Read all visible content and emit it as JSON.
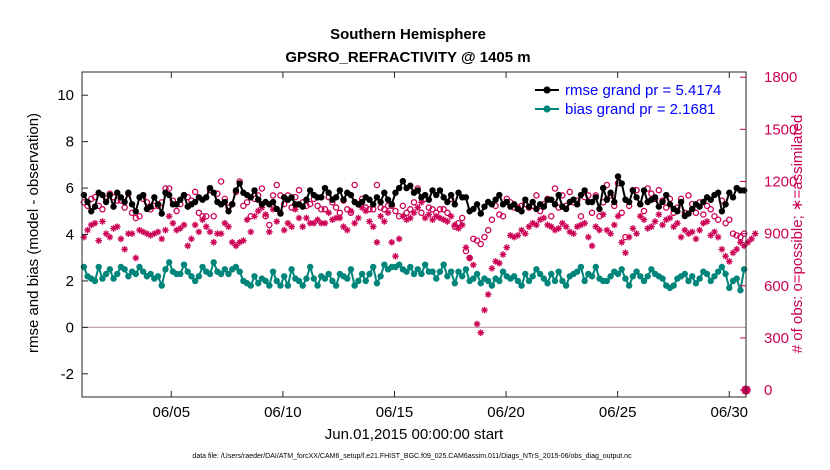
{
  "chart_data": {
    "type": "line",
    "title": "Southern Hemisphere",
    "subtitle": "GPSRO_REFRACTIVITY @ 1405 m",
    "xlabel": "Jun.01,2015 00:00:00 start",
    "ylabel": "rmse and bias (model - observation)",
    "ylabel_right": "# of obs: o=possible; ∗=assimilated",
    "footnote": "data file: /Users/raeder/DAI/ATM_forcXX/CAM6_setup/f.e21.FHIST_BGC.f09_025.CAM6assim.011/Diags_NTrS_2015-06/obs_diag_output.nc",
    "x_ticks": [
      "06/05",
      "06/10",
      "06/15",
      "06/20",
      "06/25",
      "06/30"
    ],
    "x_range_days": [
      1,
      30.75
    ],
    "ylim": [
      -3,
      11
    ],
    "y_ticks": [
      "-2",
      "0",
      "2",
      "4",
      "6",
      "8",
      "10"
    ],
    "ylim_right": [
      -40,
      1830
    ],
    "y_ticks_right": [
      "0",
      "300",
      "600",
      "900",
      "1200",
      "1500",
      "1800"
    ],
    "legend_placement": "top-right",
    "grid": false,
    "zero_line": true,
    "colors": {
      "rmse": "#000000",
      "bias": "#00857a",
      "possible": "#cc0055",
      "assimilated": "#cc0055",
      "legend_text": "#0000ff",
      "zero_line": "#c8a0b4",
      "right_axis": "#cc0055"
    },
    "series": [
      {
        "name": "rmse grand pr = 5.4174",
        "values": [
          5.7,
          5.4,
          5.0,
          5.2,
          5.8,
          5.7,
          5.4,
          5.7,
          5.2,
          5.8,
          5.6,
          5.4,
          5.8,
          5.3,
          5.0,
          5.6,
          5.7,
          5.1,
          5.2,
          5.6,
          5.3,
          4.9,
          5.8,
          5.7,
          5.3,
          5.3,
          5.5,
          5.7,
          5.2,
          5.3,
          5.4,
          5.6,
          5.5,
          5.6,
          6.0,
          5.8,
          5.4,
          5.3,
          5.4,
          5.0,
          5.3,
          5.9,
          6.2,
          5.8,
          5.7,
          5.6,
          5.9,
          5.5,
          5.3,
          5.4,
          5.3,
          5.4,
          5.1,
          4.9,
          5.6,
          5.5,
          5.6,
          5.3,
          5.3,
          5.2,
          5.5,
          5.9,
          5.7,
          5.6,
          5.6,
          6.0,
          5.8,
          5.5,
          5.6,
          5.9,
          5.5,
          5.8,
          5.7,
          5.4,
          5.3,
          5.4,
          5.6,
          5.5,
          5.3,
          5.6,
          5.4,
          5.8,
          5.5,
          5.3,
          5.8,
          6.0,
          6.3,
          6.0,
          6.1,
          5.8,
          5.9,
          5.6,
          5.7,
          5.5,
          5.9,
          5.7,
          5.9,
          5.6,
          5.4,
          5.7,
          5.3,
          5.8,
          5.6,
          5.6,
          5.0,
          5.1,
          5.3,
          4.9,
          5.2,
          5.4,
          5.3,
          5.5,
          5.7,
          5.3,
          5.4,
          5.2,
          5.3,
          5.1,
          5.0,
          5.5,
          5.2,
          5.4,
          5.1,
          5.3,
          5.2,
          5.5,
          5.5,
          5.3,
          5.7,
          5.2,
          5.1,
          5.4,
          5.5,
          5.3,
          5.7,
          5.9,
          5.4,
          5.4,
          5.6,
          5.1,
          6.0,
          5.5,
          5.8,
          5.4,
          6.5,
          6.2,
          5.5,
          5.4,
          5.9,
          5.6,
          5.3,
          5.9,
          5.4,
          5.5,
          5.6,
          5.2,
          5.4,
          5.7,
          5.3,
          5.1,
          5.0,
          5.4,
          4.8,
          4.9,
          5.1,
          5.3,
          5.2,
          5.4,
          5.6,
          5.5,
          5.7,
          5.8,
          5.0,
          5.3,
          5.8,
          5.6,
          6.0,
          5.9,
          5.9
        ]
      },
      {
        "name": "bias grand pr = 2.1681",
        "values": [
          2.6,
          2.2,
          2.1,
          2.0,
          2.6,
          2.1,
          2.3,
          2.5,
          2.1,
          2.3,
          2.6,
          2.5,
          2.2,
          2.4,
          2.3,
          2.6,
          2.4,
          2.2,
          2.3,
          2.1,
          2.2,
          1.8,
          2.5,
          2.8,
          2.4,
          2.3,
          2.3,
          2.7,
          2.4,
          2.2,
          2.0,
          2.2,
          2.6,
          2.4,
          2.3,
          2.8,
          2.4,
          2.3,
          2.5,
          2.3,
          2.5,
          2.6,
          2.4,
          2.0,
          1.9,
          1.8,
          2.2,
          1.9,
          2.1,
          2.0,
          1.8,
          2.4,
          2.0,
          1.8,
          2.2,
          1.8,
          2.5,
          2.1,
          2.0,
          1.8,
          2.1,
          2.6,
          2.1,
          1.8,
          2.2,
          2.1,
          2.3,
          2.0,
          1.8,
          2.3,
          2.2,
          2.1,
          2.5,
          1.8,
          2.0,
          2.3,
          2.0,
          2.3,
          2.6,
          1.9,
          2.2,
          2.7,
          2.5,
          2.6,
          2.6,
          2.7,
          2.5,
          2.4,
          2.6,
          2.3,
          2.5,
          2.3,
          2.7,
          2.4,
          2.4,
          2.1,
          2.4,
          2.7,
          2.2,
          2.4,
          1.9,
          2.4,
          2.2,
          2.5,
          2.0,
          2.1,
          2.3,
          1.9,
          2.1,
          2.0,
          1.8,
          2.1,
          2.0,
          2.4,
          2.2,
          2.1,
          2.2,
          2.0,
          1.8,
          2.3,
          2.0,
          2.2,
          2.5,
          2.3,
          2.1,
          1.9,
          2.3,
          2.0,
          2.4,
          2.0,
          1.8,
          2.2,
          2.3,
          2.4,
          2.6,
          2.0,
          2.3,
          2.2,
          2.6,
          2.1,
          2.0,
          2.0,
          2.2,
          2.4,
          2.3,
          2.5,
          2.1,
          1.8,
          2.2,
          2.4,
          2.2,
          2.0,
          2.2,
          2.5,
          2.3,
          2.2,
          2.1,
          1.8,
          1.7,
          1.8,
          2.1,
          2.2,
          2.3,
          2.0,
          2.2,
          1.9,
          2.1,
          2.4,
          2.3,
          2.0,
          2.2,
          2.4,
          2.6,
          2.3,
          1.7,
          2.0,
          2.1,
          1.6,
          2.5
        ]
      },
      {
        "name": "possible",
        "values": [
          1080,
          1060,
          1100,
          1110,
          1060,
          1040,
          1100,
          1130,
          1110,
          1090,
          1090,
          1050,
          1130,
          1020,
          990,
          1000,
          1100,
          1080,
          1040,
          1060,
          1060,
          1080,
          1160,
          1160,
          1090,
          1030,
          1070,
          1120,
          1110,
          1090,
          1140,
          1020,
          1000,
          1000,
          1150,
          1000,
          1130,
          1200,
          1100,
          1050,
          1070,
          1140,
          1200,
          1060,
          1080,
          1000,
          1100,
          1120,
          1160,
          1000,
          950,
          1120,
          1180,
          1120,
          1070,
          1120,
          1050,
          1110,
          1150,
          1080,
          1060,
          1070,
          1100,
          1060,
          1040,
          1040,
          1110,
          1080,
          1050,
          1020,
          1090,
          1040,
          1020,
          1180,
          1070,
          1100,
          1050,
          1040,
          1040,
          1180,
          1050,
          1040,
          1060,
          1060,
          1030,
          1000,
          1060,
          1020,
          1040,
          1080,
          1160,
          1020,
          1100,
          1050,
          1040,
          1020,
          1040,
          1040,
          1020,
          1100,
          940,
          960,
          990,
          800,
          760,
          870,
          860,
          840,
          880,
          920,
          980,
          1060,
          1010,
          1000,
          1100,
          1080,
          1050,
          1050,
          1060,
          1070,
          1050,
          1060,
          1120,
          1030,
          1070,
          1100,
          1000,
          1160,
          1050,
          1120,
          1060,
          1140,
          1080,
          1090,
          1000,
          1110,
          1120,
          1020,
          1120,
          1000,
          1080,
          1180,
          1120,
          1060,
          1190,
          1020,
          880,
          1060,
          1150,
          1150,
          1070,
          1030,
          1160,
          1130,
          1100,
          1150,
          1090,
          1050,
          1100,
          1020,
          1050,
          1100,
          1020,
          1120,
          1070,
          1020,
          1080,
          1010,
          1060,
          1040,
          1000,
          980,
          1090,
          960,
          980,
          900,
          890,
          880,
          900
        ]
      },
      {
        "name": "assimilated",
        "values": [
          880,
          920,
          950,
          960,
          860,
          970,
          900,
          880,
          930,
          940,
          870,
          810,
          900,
          900,
          760,
          920,
          910,
          900,
          890,
          900,
          910,
          870,
          920,
          1000,
          960,
          920,
          930,
          950,
          830,
          870,
          950,
          910,
          980,
          940,
          910,
          850,
          900,
          900,
          960,
          940,
          850,
          830,
          850,
          860,
          980,
          910,
          1000,
          1030,
          1050,
          1010,
          910,
          1040,
          970,
          1020,
          920,
          960,
          940,
          1040,
          990,
          940,
          990,
          960,
          960,
          980,
          960,
          960,
          1020,
          980,
          990,
          990,
          940,
          920,
          1030,
          960,
          990,
          1050,
          1030,
          970,
          940,
          850,
          1000,
          970,
          1020,
          850,
          770,
          870,
          1000,
          980,
          990,
          1020,
          1050,
          1080,
          990,
          1010,
          980,
          1000,
          990,
          980,
          970,
          1000,
          950,
          930,
          950,
          820,
          760,
          720,
          380,
          330,
          460,
          550,
          700,
          740,
          730,
          780,
          820,
          890,
          880,
          890,
          920,
          900,
          940,
          960,
          950,
          980,
          990,
          950,
          940,
          920,
          930,
          960,
          940,
          910,
          900,
          940,
          950,
          960,
          880,
          830,
          940,
          920,
          1010,
          920,
          900,
          950,
          1000,
          850,
          790,
          880,
          930,
          900,
          1000,
          980,
          930,
          940,
          970,
          1010,
          950,
          980,
          990,
          940,
          960,
          880,
          920,
          900,
          910,
          870,
          920,
          960,
          970,
          890,
          910,
          880,
          810,
          770,
          740,
          790,
          810,
          850,
          830,
          850,
          870,
          900
        ]
      }
    ]
  }
}
